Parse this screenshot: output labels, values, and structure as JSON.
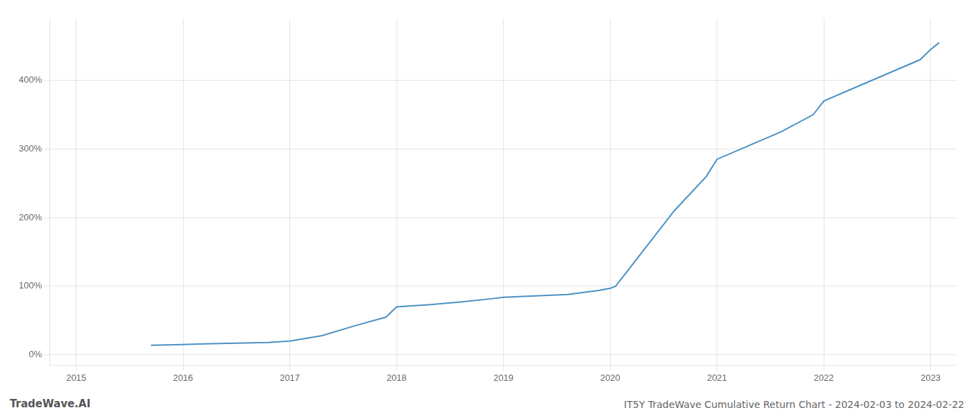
{
  "chart_data": {
    "type": "line",
    "title": "IT5Y TradeWave Cumulative Return Chart - 2024-02-03 to 2024-02-22",
    "annotations": [
      "TradeWave.AI"
    ],
    "color": "#4a90c4",
    "x": [
      2015.7,
      2016.0,
      2016.2,
      2016.5,
      2016.8,
      2017.0,
      2017.3,
      2017.6,
      2017.9,
      2018.0,
      2018.3,
      2018.6,
      2018.9,
      2019.0,
      2019.3,
      2019.6,
      2019.9,
      2020.0,
      2020.05,
      2020.15,
      2020.35,
      2020.6,
      2020.9,
      2021.0,
      2021.3,
      2021.6,
      2021.9,
      2022.0,
      2022.3,
      2022.6,
      2022.9,
      2023.0,
      2023.08
    ],
    "values": [
      14,
      15,
      16,
      17,
      18,
      20,
      28,
      42,
      55,
      70,
      73,
      77,
      82,
      84,
      86,
      88,
      94,
      97,
      100,
      120,
      160,
      210,
      260,
      285,
      305,
      325,
      350,
      370,
      390,
      410,
      430,
      445,
      455
    ],
    "xlim": [
      2014.75,
      2023.25
    ],
    "xticks": [
      2015,
      2016,
      2017,
      2018,
      2019,
      2020,
      2021,
      2022,
      2023
    ],
    "ylim": [
      -15,
      490
    ],
    "yticks": [
      {
        "value": 0,
        "label": "0%"
      },
      {
        "value": 100,
        "label": "100%"
      },
      {
        "value": 200,
        "label": "200%"
      },
      {
        "value": 300,
        "label": "300%"
      },
      {
        "value": 400,
        "label": "400%"
      }
    ],
    "grid": true
  }
}
